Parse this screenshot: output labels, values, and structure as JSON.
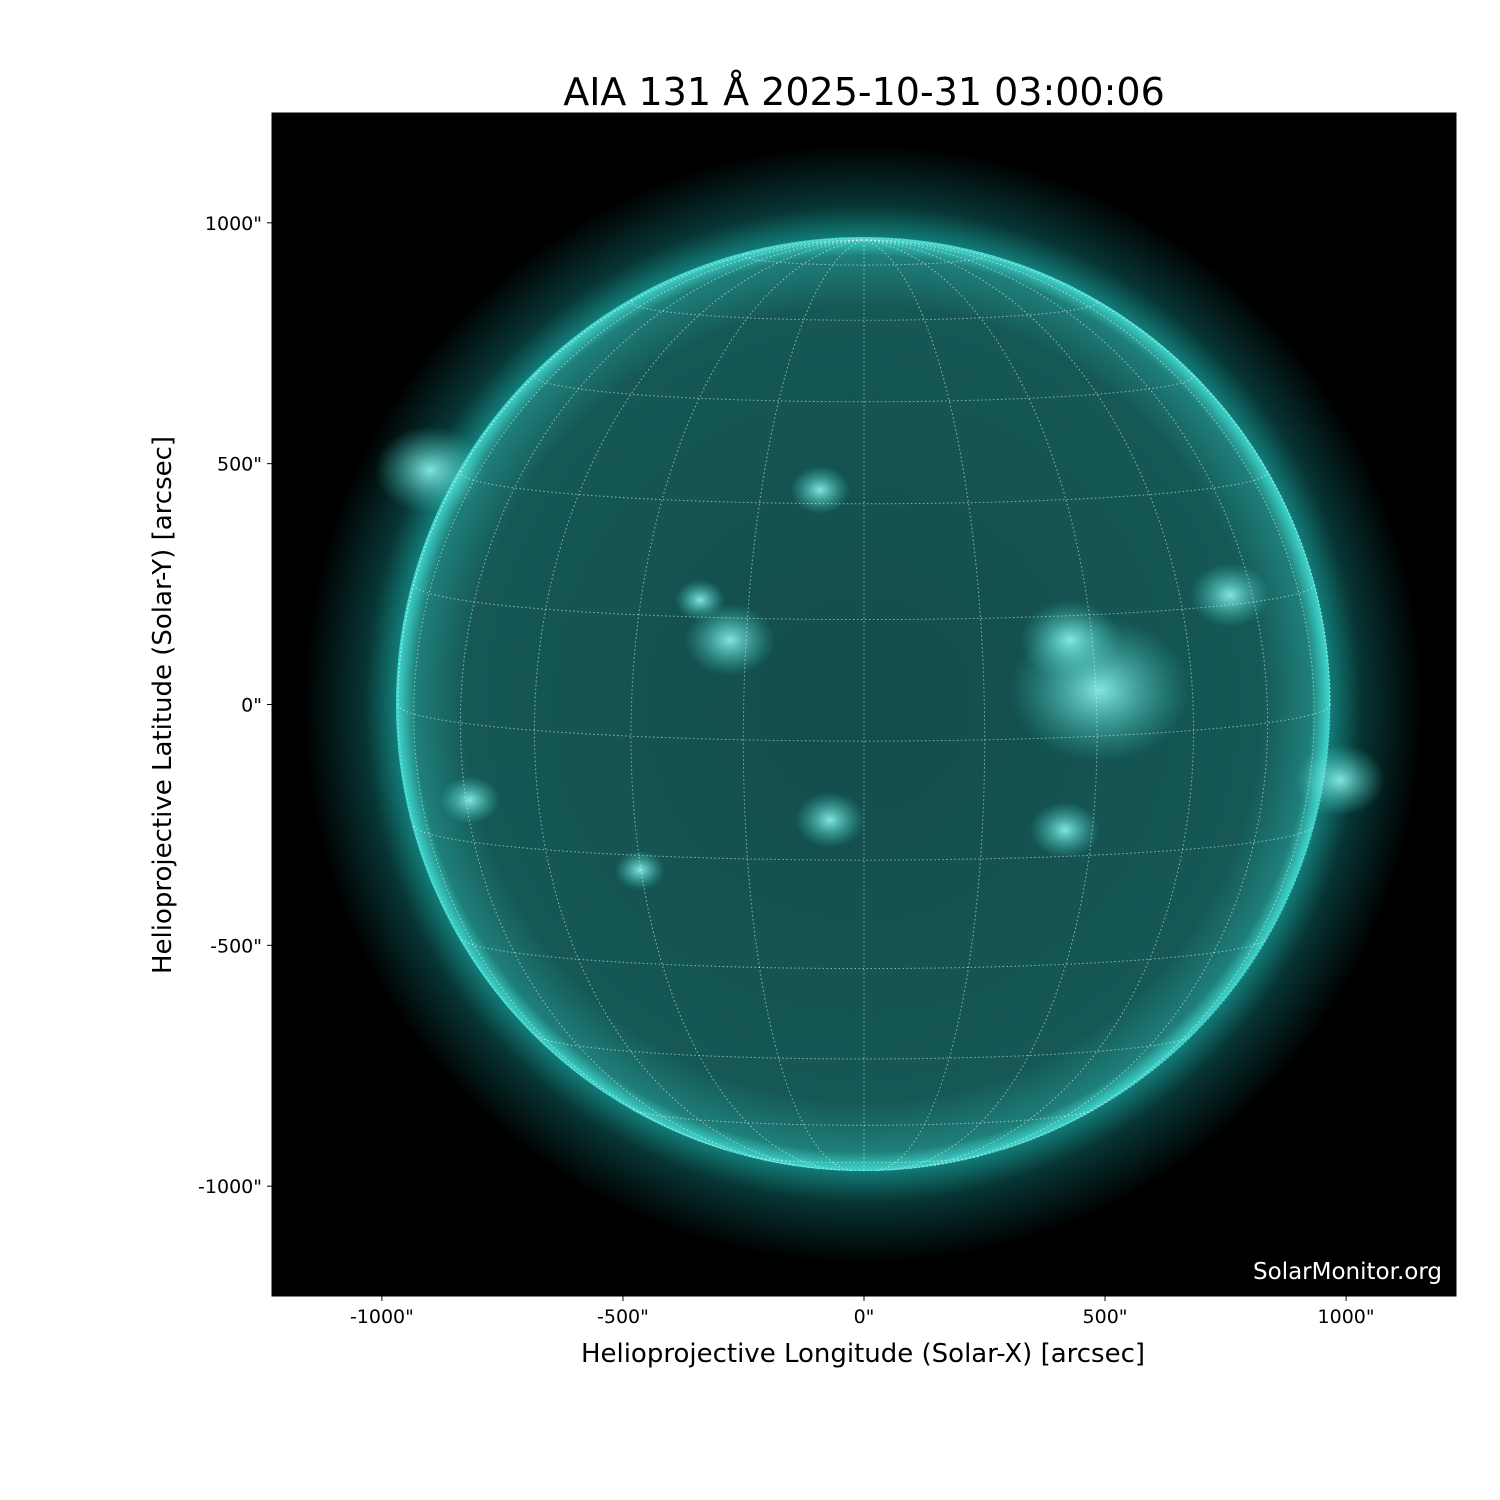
{
  "chart_data": {
    "type": "image",
    "title": "AIA 131 Å 2025-10-31 03:00:06",
    "xlabel": "Helioprojective Longitude (Solar-X) [arcsec]",
    "ylabel": "Helioprojective Latitude (Solar-Y) [arcsec]",
    "xlim": [
      -1228,
      1228
    ],
    "ylim": [
      -1228,
      1228
    ],
    "x_ticks": [
      -1000,
      -500,
      0,
      500,
      1000
    ],
    "x_tick_labels": [
      "-1000\"",
      "-500\"",
      "0\"",
      "500\"",
      "1000\""
    ],
    "y_ticks": [
      1000,
      500,
      0,
      -500,
      -1000
    ],
    "y_tick_labels": [
      "1000\"",
      "500\"",
      "0\"",
      "-500\"",
      "-1000\""
    ],
    "solar_radius_arcsec": 967,
    "grid": "heliographic, 15° spacing, dotted",
    "colormap": "sdoaia131",
    "colors": {
      "background": "#000000",
      "disk": "#0f4a4a",
      "bright": "#5ff5e8",
      "limb": "#2ec9c0"
    }
  },
  "watermark": "SolarMonitor.org"
}
